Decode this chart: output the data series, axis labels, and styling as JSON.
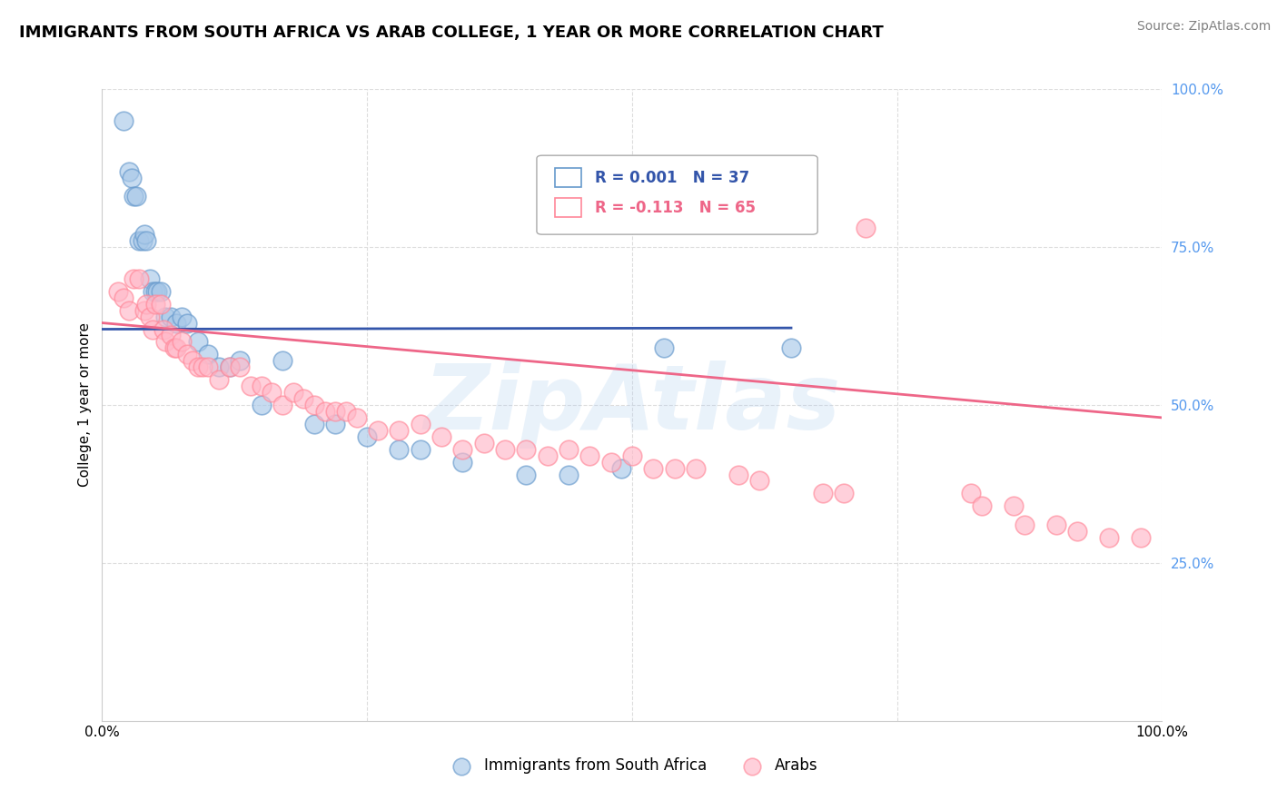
{
  "title": "IMMIGRANTS FROM SOUTH AFRICA VS ARAB COLLEGE, 1 YEAR OR MORE CORRELATION CHART",
  "source": "Source: ZipAtlas.com",
  "ylabel": "College, 1 year or more",
  "legend_label_1": "Immigrants from South Africa",
  "legend_label_2": "Arabs",
  "R1": 0.001,
  "N1": 37,
  "R2": -0.113,
  "N2": 65,
  "color_blue": "#A8C8E8",
  "color_pink": "#FFB8C8",
  "color_blue_line": "#3355AA",
  "color_pink_line": "#EE6688",
  "color_blue_edge": "#6699CC",
  "color_pink_edge": "#FF8899",
  "background_color": "#FFFFFF",
  "grid_color": "#DDDDDD",
  "right_axis_color": "#5599EE",
  "title_fontsize": 13,
  "source_fontsize": 10,
  "axis_fontsize": 11,
  "legend_fontsize": 12,
  "xlim": [
    0,
    1
  ],
  "ylim": [
    0,
    1
  ],
  "blue_x": [
    0.02,
    0.025,
    0.028,
    0.03,
    0.032,
    0.035,
    0.038,
    0.04,
    0.042,
    0.045,
    0.048,
    0.05,
    0.052,
    0.055,
    0.06,
    0.065,
    0.07,
    0.075,
    0.08,
    0.09,
    0.1,
    0.11,
    0.12,
    0.13,
    0.15,
    0.17,
    0.2,
    0.22,
    0.25,
    0.28,
    0.3,
    0.34,
    0.4,
    0.44,
    0.49,
    0.53,
    0.65
  ],
  "blue_y": [
    0.95,
    0.87,
    0.86,
    0.83,
    0.83,
    0.76,
    0.76,
    0.77,
    0.76,
    0.7,
    0.68,
    0.68,
    0.68,
    0.68,
    0.64,
    0.64,
    0.63,
    0.64,
    0.63,
    0.6,
    0.58,
    0.56,
    0.56,
    0.57,
    0.5,
    0.57,
    0.47,
    0.47,
    0.45,
    0.43,
    0.43,
    0.41,
    0.39,
    0.39,
    0.4,
    0.59,
    0.59
  ],
  "pink_x": [
    0.015,
    0.02,
    0.025,
    0.03,
    0.035,
    0.04,
    0.042,
    0.045,
    0.048,
    0.05,
    0.055,
    0.058,
    0.06,
    0.065,
    0.068,
    0.07,
    0.075,
    0.08,
    0.085,
    0.09,
    0.095,
    0.1,
    0.11,
    0.12,
    0.13,
    0.14,
    0.15,
    0.16,
    0.17,
    0.18,
    0.19,
    0.2,
    0.21,
    0.22,
    0.23,
    0.24,
    0.26,
    0.28,
    0.3,
    0.32,
    0.34,
    0.36,
    0.38,
    0.4,
    0.42,
    0.44,
    0.46,
    0.48,
    0.5,
    0.52,
    0.54,
    0.56,
    0.6,
    0.62,
    0.68,
    0.7,
    0.72,
    0.82,
    0.83,
    0.86,
    0.87,
    0.9,
    0.92,
    0.95,
    0.98
  ],
  "pink_y": [
    0.68,
    0.67,
    0.65,
    0.7,
    0.7,
    0.65,
    0.66,
    0.64,
    0.62,
    0.66,
    0.66,
    0.62,
    0.6,
    0.61,
    0.59,
    0.59,
    0.6,
    0.58,
    0.57,
    0.56,
    0.56,
    0.56,
    0.54,
    0.56,
    0.56,
    0.53,
    0.53,
    0.52,
    0.5,
    0.52,
    0.51,
    0.5,
    0.49,
    0.49,
    0.49,
    0.48,
    0.46,
    0.46,
    0.47,
    0.45,
    0.43,
    0.44,
    0.43,
    0.43,
    0.42,
    0.43,
    0.42,
    0.41,
    0.42,
    0.4,
    0.4,
    0.4,
    0.39,
    0.38,
    0.36,
    0.36,
    0.78,
    0.36,
    0.34,
    0.34,
    0.31,
    0.31,
    0.3,
    0.29,
    0.29
  ],
  "blue_line_x": [
    0.0,
    0.65
  ],
  "blue_line_y": [
    0.62,
    0.622
  ],
  "pink_line_x": [
    0.0,
    1.0
  ],
  "pink_line_y": [
    0.63,
    0.48
  ],
  "watermark_text": "ZipAtlas",
  "watermark_color": "#AACCEE",
  "watermark_alpha": 0.25,
  "watermark_fontsize": 72
}
